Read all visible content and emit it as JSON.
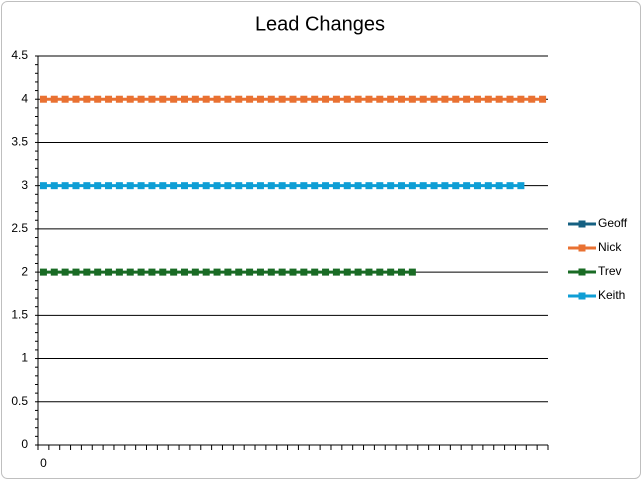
{
  "chart_data": {
    "type": "line",
    "title": "Lead Changes",
    "categories": [
      "0",
      null,
      null,
      null,
      null,
      null,
      null,
      null,
      null,
      null,
      null,
      null,
      null,
      null,
      null,
      null,
      null,
      null,
      null,
      null,
      null,
      null,
      null,
      null,
      null,
      null,
      null,
      null,
      null,
      null,
      null,
      null,
      null,
      null,
      null,
      null,
      null,
      null,
      null,
      null,
      null,
      null,
      null,
      null,
      null,
      null,
      null
    ],
    "series": [
      {
        "name": "Geoff",
        "color": "#156082",
        "values": [
          null,
          null,
          null,
          null,
          null,
          null,
          null,
          null,
          null,
          null,
          null,
          null,
          null,
          null,
          null,
          null,
          null,
          null,
          null,
          null,
          null,
          null,
          null,
          null,
          null,
          null,
          null,
          null,
          null,
          null,
          null,
          null,
          null,
          null,
          null,
          null,
          null,
          null,
          null,
          null,
          null,
          null,
          null,
          null,
          null,
          null,
          null
        ]
      },
      {
        "name": "Nick",
        "color": "#e97132",
        "values": [
          4,
          4,
          4,
          4,
          4,
          4,
          4,
          4,
          4,
          4,
          4,
          4,
          4,
          4,
          4,
          4,
          4,
          4,
          4,
          4,
          4,
          4,
          4,
          4,
          4,
          4,
          4,
          4,
          4,
          4,
          4,
          4,
          4,
          4,
          4,
          4,
          4,
          4,
          4,
          4,
          4,
          4,
          4,
          4,
          4,
          4,
          4
        ]
      },
      {
        "name": "Trev",
        "color": "#196b24",
        "values": [
          2,
          2,
          2,
          2,
          2,
          2,
          2,
          2,
          2,
          2,
          2,
          2,
          2,
          2,
          2,
          2,
          2,
          2,
          2,
          2,
          2,
          2,
          2,
          2,
          2,
          2,
          2,
          2,
          2,
          2,
          2,
          2,
          2,
          2,
          2,
          null,
          null,
          null,
          null,
          null,
          null,
          null,
          null,
          null,
          null,
          null,
          null
        ]
      },
      {
        "name": "Keith",
        "color": "#0f9ed5",
        "values": [
          3,
          3,
          3,
          3,
          3,
          3,
          3,
          3,
          3,
          3,
          3,
          3,
          3,
          3,
          3,
          3,
          3,
          3,
          3,
          3,
          3,
          3,
          3,
          3,
          3,
          3,
          3,
          3,
          3,
          3,
          3,
          3,
          3,
          3,
          3,
          3,
          3,
          3,
          3,
          3,
          3,
          3,
          3,
          3,
          3,
          null,
          null
        ]
      }
    ],
    "ylim": [
      0,
      4.5
    ],
    "yticks": [
      0,
      0.5,
      1,
      1.5,
      2,
      2.5,
      3,
      3.5,
      4,
      4.5
    ],
    "grid": true,
    "legend": "right"
  }
}
